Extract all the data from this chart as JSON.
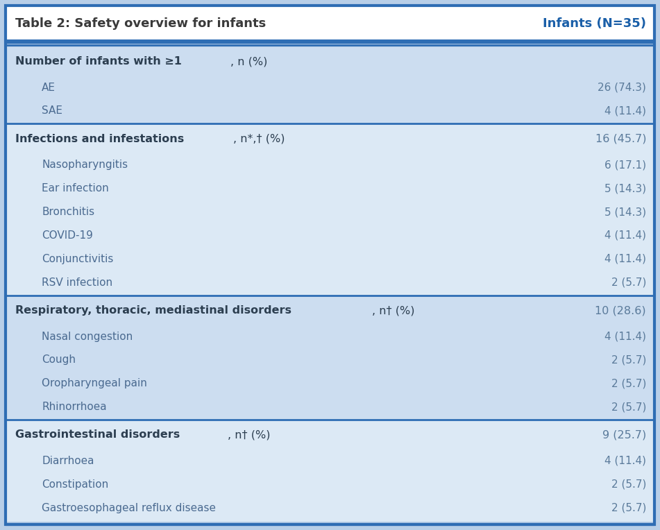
{
  "title_left": "Table 2: Safety overview for infants",
  "title_right": "Infants (N=35)",
  "title_bg": "#ffffff",
  "title_text_color_left": "#3a3a3a",
  "title_text_color_right": "#1a5fa8",
  "header_border_color": "#2e6db4",
  "bg_light": "#ccddf0",
  "bg_lighter": "#dce9f5",
  "outer_bg": "#b8cfe8",
  "sections": [
    {
      "header_bold": "Number of infants with ≥1",
      "header_normal": ", n (%)",
      "header_value": "",
      "bg": "#ccddf0",
      "rows": [
        {
          "label": "AE",
          "value": "26 (74.3)"
        },
        {
          "label": "SAE",
          "value": "4 (11.4)"
        }
      ]
    },
    {
      "header_bold": "Infections and infestations",
      "header_normal": ", n*,† (%)",
      "header_value": "16 (45.7)",
      "bg": "#dce9f5",
      "rows": [
        {
          "label": "Nasopharyngitis",
          "value": "6 (17.1)"
        },
        {
          "label": "Ear infection",
          "value": "5 (14.3)"
        },
        {
          "label": "Bronchitis",
          "value": "5 (14.3)"
        },
        {
          "label": "COVID-19",
          "value": "4 (11.4)"
        },
        {
          "label": "Conjunctivitis",
          "value": "4 (11.4)"
        },
        {
          "label": "RSV infection",
          "value": "2 (5.7)"
        }
      ]
    },
    {
      "header_bold": "Respiratory, thoracic, mediastinal disorders",
      "header_normal": ", n† (%)",
      "header_value": "10 (28.6)",
      "bg": "#ccddf0",
      "rows": [
        {
          "label": "Nasal congestion",
          "value": "4 (11.4)"
        },
        {
          "label": "Cough",
          "value": "2 (5.7)"
        },
        {
          "label": "Oropharyngeal pain",
          "value": "2 (5.7)"
        },
        {
          "label": "Rhinorrhoea",
          "value": "2 (5.7)"
        }
      ]
    },
    {
      "header_bold": "Gastrointestinal disorders",
      "header_normal": ", n† (%)",
      "header_value": "9 (25.7)",
      "bg": "#dce9f5",
      "rows": [
        {
          "label": "Diarrhoea",
          "value": "4 (11.4)"
        },
        {
          "label": "Constipation",
          "value": "2 (5.7)"
        },
        {
          "label": "Gastroesophageal reflux disease",
          "value": "2 (5.7)"
        }
      ]
    }
  ],
  "text_color_header_bold": "#2c3e50",
  "text_color_header_normal": "#2c3e50",
  "text_color_row_label": "#4a6a90",
  "text_color_value": "#5a7a9a",
  "font_size_title": 13.0,
  "font_size_header": 11.5,
  "font_size_row": 11.0,
  "divider_color": "#2e6db4",
  "outer_border_color": "#2e6db4"
}
